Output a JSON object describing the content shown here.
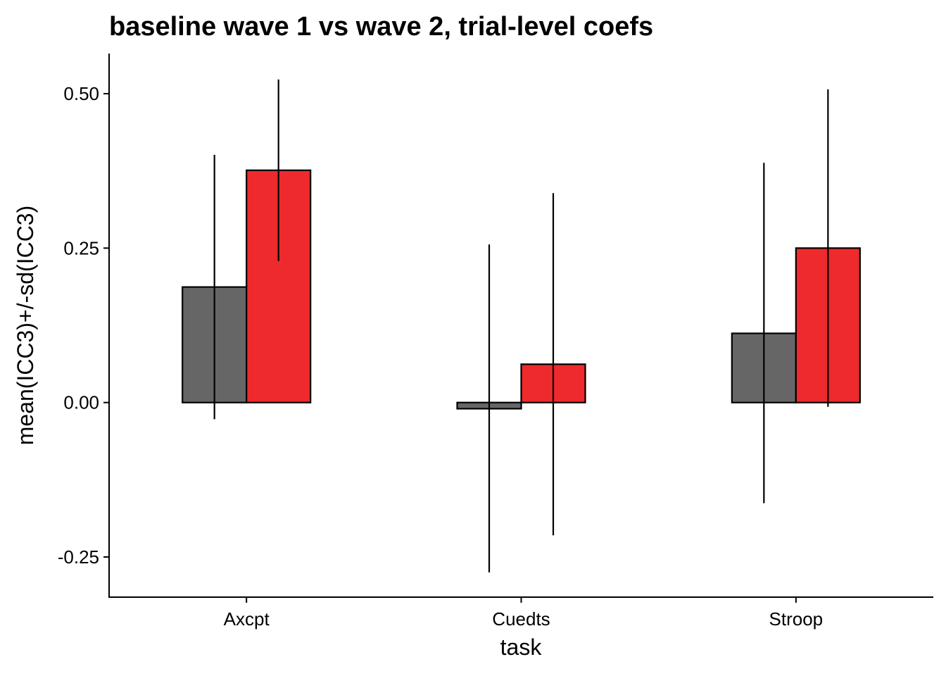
{
  "chart_data": {
    "type": "bar",
    "title": "baseline wave 1 vs wave 2, trial-level coefs",
    "xlabel": "task",
    "ylabel": "mean(ICC3)+/-sd(ICC3)",
    "categories": [
      "Axcpt",
      "Cuedts",
      "Stroop"
    ],
    "ylim": [
      -0.315,
      0.565
    ],
    "yticks": [
      -0.25,
      0.0,
      0.25,
      0.5
    ],
    "ytick_labels": [
      "-0.25",
      "0.00",
      "0.25",
      "0.50"
    ],
    "grid": false,
    "legend": "none",
    "series": [
      {
        "color": "#666666",
        "values": [
          0.187,
          -0.01,
          0.112
        ],
        "error_low": [
          -0.027,
          -0.275,
          -0.163
        ],
        "error_high": [
          0.401,
          0.256,
          0.388
        ]
      },
      {
        "color": "#EE2A2C",
        "values": [
          0.376,
          0.062,
          0.25
        ],
        "error_low": [
          0.229,
          -0.215,
          -0.007
        ],
        "error_high": [
          0.523,
          0.339,
          0.507
        ]
      }
    ]
  }
}
